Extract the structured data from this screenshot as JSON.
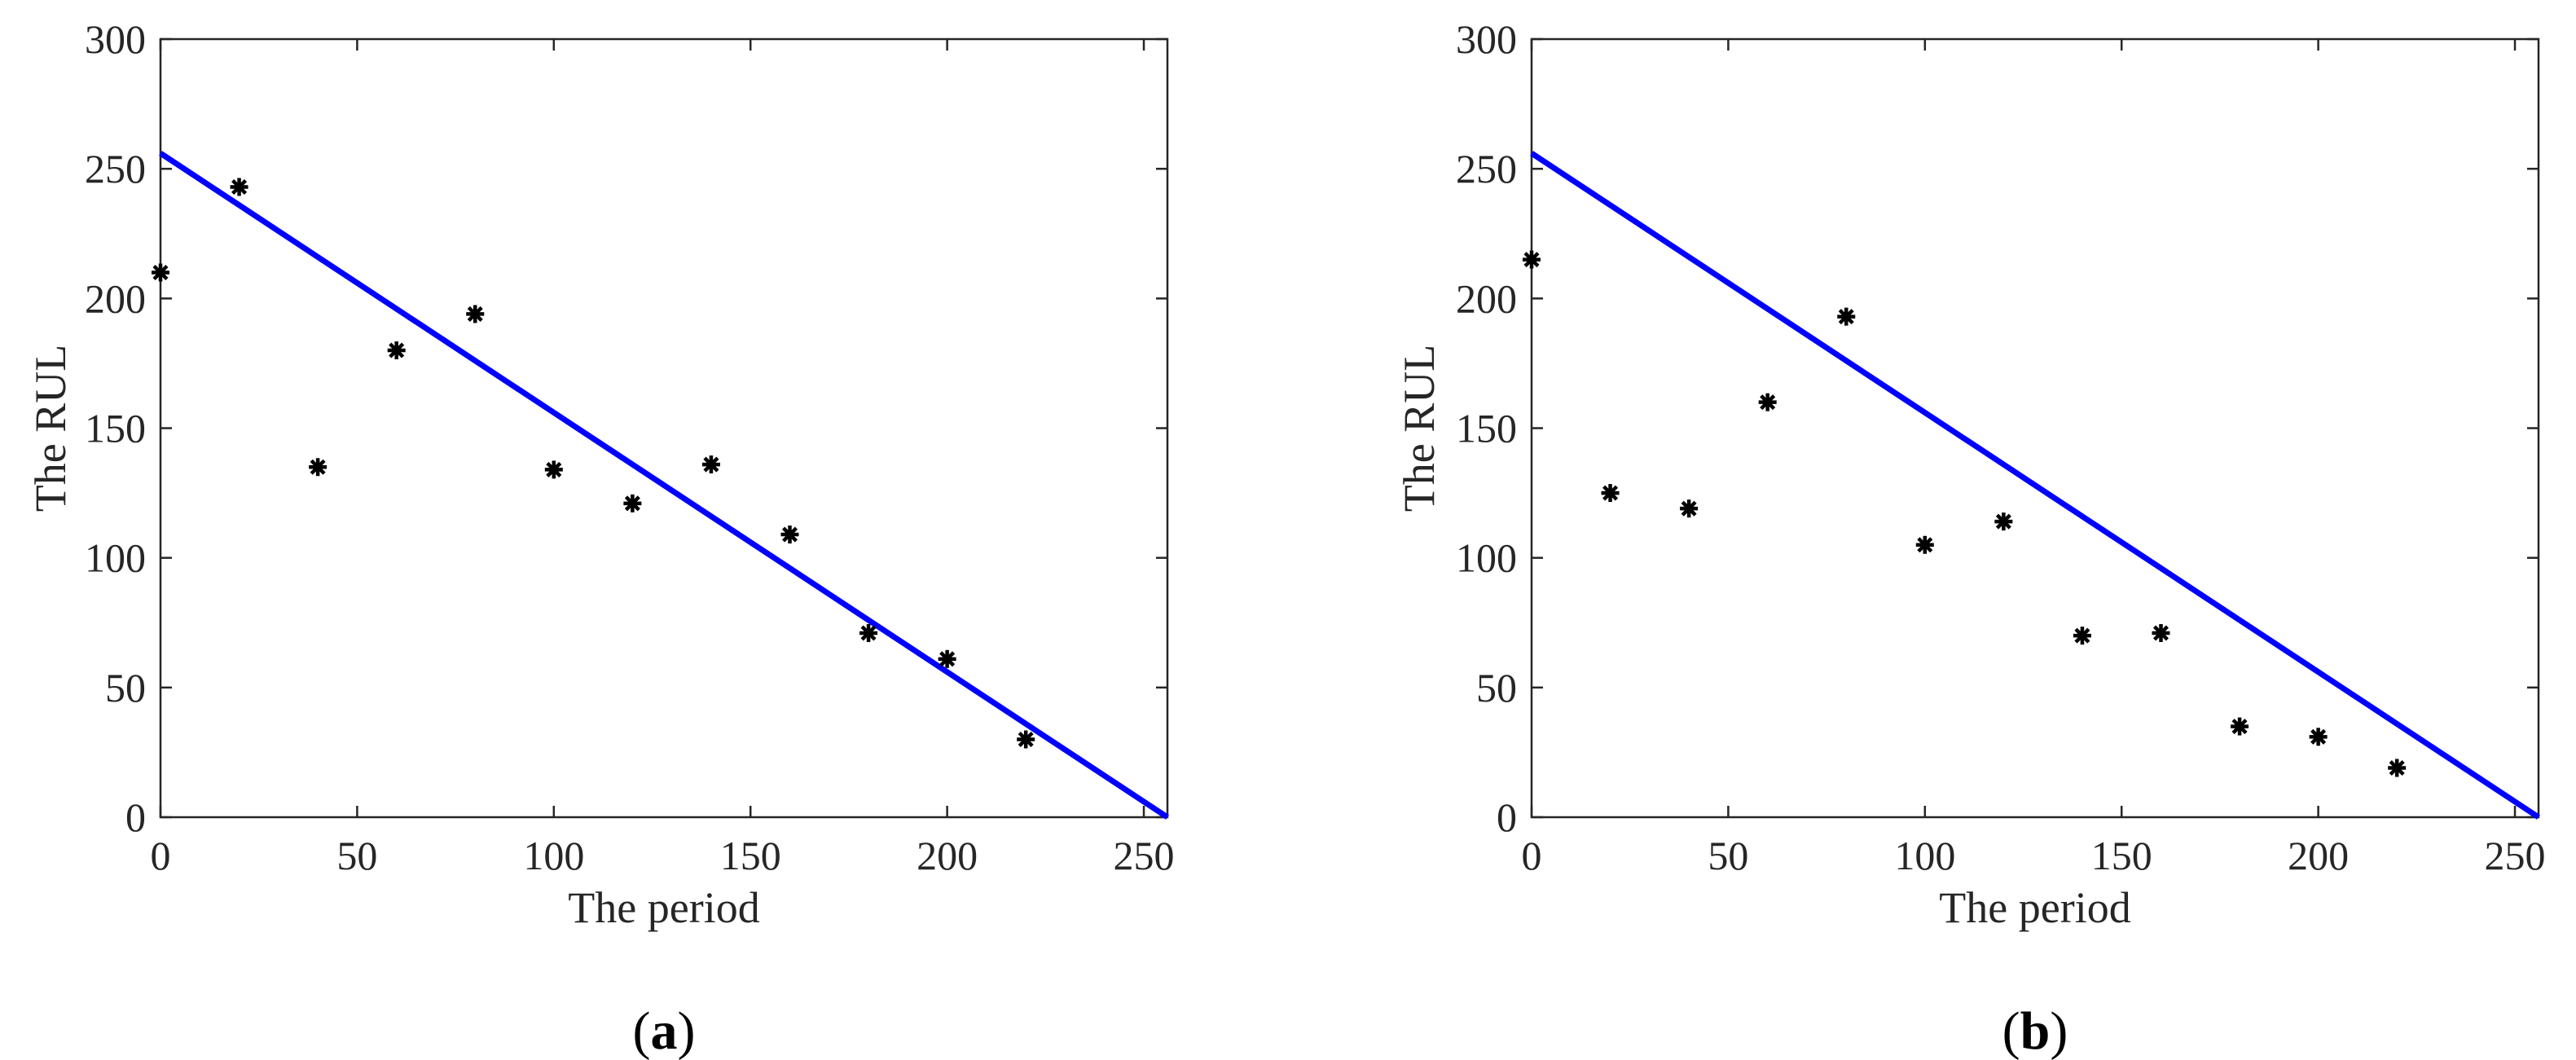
{
  "chart_data": [
    {
      "type": "scatter",
      "panel_label": "a",
      "xlabel": "The period",
      "ylabel": "The RUL",
      "xlim": [
        0,
        256
      ],
      "ylim": [
        0,
        300
      ],
      "xticks": [
        0,
        50,
        100,
        150,
        200,
        250
      ],
      "yticks": [
        0,
        50,
        100,
        150,
        200,
        250,
        300
      ],
      "grid": false,
      "series": [
        {
          "type": "scatter",
          "marker": "asterisk",
          "color": "#000000",
          "x": [
            0,
            20,
            40,
            60,
            80,
            100,
            120,
            140,
            160,
            180,
            200,
            220
          ],
          "y": [
            210,
            243,
            135,
            180,
            194,
            134,
            121,
            136,
            109,
            71,
            61,
            30
          ]
        },
        {
          "type": "line",
          "color": "#0000ff",
          "x": [
            0,
            256
          ],
          "y": [
            256,
            0
          ]
        }
      ]
    },
    {
      "type": "scatter",
      "panel_label": "b",
      "xlabel": "The period",
      "ylabel": "The RUL",
      "xlim": [
        0,
        256
      ],
      "ylim": [
        0,
        300
      ],
      "xticks": [
        0,
        50,
        100,
        150,
        200,
        250
      ],
      "yticks": [
        0,
        50,
        100,
        150,
        200,
        250,
        300
      ],
      "grid": false,
      "series": [
        {
          "type": "scatter",
          "marker": "asterisk",
          "color": "#000000",
          "x": [
            0,
            20,
            40,
            60,
            80,
            100,
            120,
            140,
            160,
            180,
            200,
            220
          ],
          "y": [
            215,
            125,
            119,
            160,
            193,
            105,
            114,
            70,
            71,
            35,
            31,
            19
          ]
        },
        {
          "type": "line",
          "color": "#0000ff",
          "x": [
            0,
            256
          ],
          "y": [
            256,
            0
          ]
        }
      ]
    }
  ]
}
